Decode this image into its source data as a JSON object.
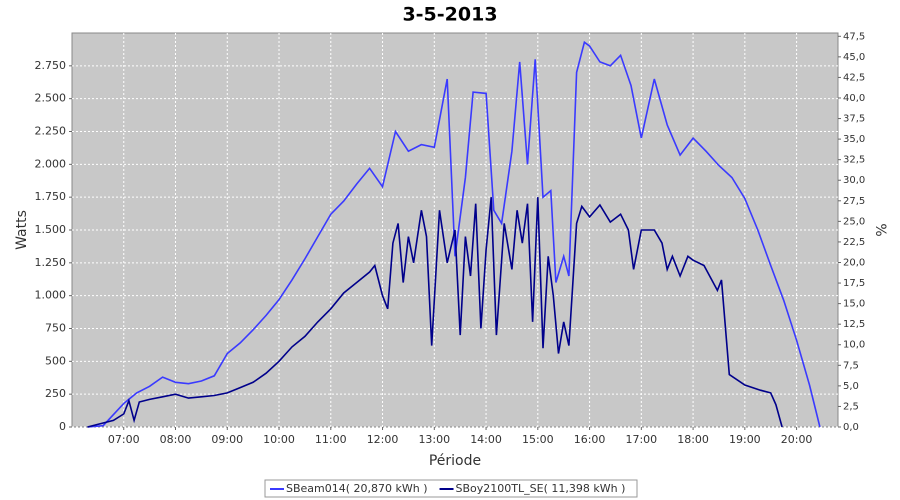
{
  "chart_data": {
    "type": "line",
    "title": "3-5-2013",
    "xlabel": "Période",
    "ylabel": "Watts",
    "y2label": "%",
    "xlim": [
      6.0,
      20.8
    ],
    "xticks": [
      {
        "value": 7,
        "label": "07:00"
      },
      {
        "value": 8,
        "label": "08:00"
      },
      {
        "value": 9,
        "label": "09:00"
      },
      {
        "value": 10,
        "label": "10:00"
      },
      {
        "value": 11,
        "label": "11:00"
      },
      {
        "value": 12,
        "label": "12:00"
      },
      {
        "value": 13,
        "label": "13:00"
      },
      {
        "value": 14,
        "label": "14:00"
      },
      {
        "value": 15,
        "label": "15:00"
      },
      {
        "value": 16,
        "label": "16:00"
      },
      {
        "value": 17,
        "label": "17:00"
      },
      {
        "value": 18,
        "label": "18:00"
      },
      {
        "value": 19,
        "label": "19:00"
      },
      {
        "value": 20,
        "label": "20:00"
      }
    ],
    "ylim": [
      0,
      3000
    ],
    "yticks": [
      0,
      250,
      500,
      750,
      {
        "value": 1000,
        "label": "1.000"
      },
      {
        "value": 1250,
        "label": "1.250"
      },
      {
        "value": 1500,
        "label": "1.500"
      },
      {
        "value": 1750,
        "label": "1.750"
      },
      {
        "value": 2000,
        "label": "2.000"
      },
      {
        "value": 2250,
        "label": "2.250"
      },
      {
        "value": 2500,
        "label": "2.500"
      },
      {
        "value": 2750,
        "label": "2.750"
      }
    ],
    "y2lim": [
      0,
      47.9
    ],
    "y2ticks": [
      {
        "value": 0,
        "label": "0,0"
      },
      {
        "value": 2.5,
        "label": "2,5"
      },
      {
        "value": 5,
        "label": "5,0"
      },
      {
        "value": 7.5,
        "label": "7,5"
      },
      {
        "value": 10,
        "label": "10,0"
      },
      {
        "value": 12.5,
        "label": "12,5"
      },
      {
        "value": 15,
        "label": "15,0"
      },
      {
        "value": 17.5,
        "label": "17,5"
      },
      {
        "value": 20,
        "label": "20,0"
      },
      {
        "value": 22.5,
        "label": "22,5"
      },
      {
        "value": 25,
        "label": "25,0"
      },
      {
        "value": 27.5,
        "label": "27,5"
      },
      {
        "value": 30,
        "label": "30,0"
      },
      {
        "value": 32.5,
        "label": "32,5"
      },
      {
        "value": 35,
        "label": "35,0"
      },
      {
        "value": 37.5,
        "label": "37,5"
      },
      {
        "value": 40,
        "label": "40,0"
      },
      {
        "value": 42.5,
        "label": "42,5"
      },
      {
        "value": 45,
        "label": "45,0"
      },
      {
        "value": 47.5,
        "label": "47,5"
      }
    ],
    "grid": true,
    "series": [
      {
        "name": "SBeam014( 20,870 kWh )",
        "color": "#3a3aff",
        "x": [
          6.3,
          6.6,
          7.0,
          7.25,
          7.5,
          7.75,
          8.0,
          8.25,
          8.5,
          8.75,
          9.0,
          9.25,
          9.5,
          9.75,
          10.0,
          10.25,
          10.5,
          10.75,
          11.0,
          11.25,
          11.5,
          11.75,
          12.0,
          12.25,
          12.5,
          12.75,
          13.0,
          13.25,
          13.4,
          13.6,
          13.75,
          14.0,
          14.15,
          14.3,
          14.5,
          14.65,
          14.8,
          14.95,
          15.1,
          15.25,
          15.35,
          15.5,
          15.6,
          15.75,
          15.9,
          16.0,
          16.2,
          16.4,
          16.6,
          16.8,
          17.0,
          17.25,
          17.5,
          17.75,
          18.0,
          18.25,
          18.5,
          18.75,
          19.0,
          19.25,
          19.5,
          19.75,
          20.0,
          20.25,
          20.45
        ],
        "values": [
          0,
          10,
          180,
          260,
          310,
          380,
          340,
          330,
          350,
          390,
          560,
          640,
          740,
          850,
          970,
          1120,
          1280,
          1450,
          1620,
          1720,
          1850,
          1970,
          1830,
          2250,
          2100,
          2150,
          2130,
          2650,
          1300,
          1900,
          2550,
          2540,
          1650,
          1550,
          2100,
          2780,
          2000,
          2800,
          1750,
          1800,
          1100,
          1300,
          1150,
          2700,
          2930,
          2900,
          2780,
          2750,
          2830,
          2600,
          2200,
          2650,
          2300,
          2070,
          2200,
          2100,
          1990,
          1900,
          1740,
          1500,
          1230,
          965,
          660,
          320,
          0
        ]
      },
      {
        "name": "SBoy2100TL_SE( 11,398 kWh )",
        "color": "#00008b",
        "x": [
          6.3,
          6.8,
          7.0,
          7.1,
          7.2,
          7.3,
          7.5,
          7.75,
          8.0,
          8.25,
          8.5,
          8.75,
          9.0,
          9.25,
          9.5,
          9.75,
          10.0,
          10.25,
          10.5,
          10.75,
          11.0,
          11.25,
          11.5,
          11.75,
          11.85,
          12.0,
          12.1,
          12.2,
          12.3,
          12.4,
          12.5,
          12.6,
          12.75,
          12.85,
          12.95,
          13.1,
          13.25,
          13.4,
          13.5,
          13.6,
          13.7,
          13.8,
          13.9,
          14.0,
          14.1,
          14.2,
          14.35,
          14.5,
          14.6,
          14.7,
          14.8,
          14.9,
          15.0,
          15.1,
          15.2,
          15.3,
          15.4,
          15.5,
          15.6,
          15.75,
          15.85,
          16.0,
          16.2,
          16.4,
          16.6,
          16.75,
          16.85,
          17.0,
          17.25,
          17.4,
          17.5,
          17.6,
          17.75,
          17.9,
          18.0,
          18.21,
          18.47,
          18.55,
          18.7,
          19.0,
          19.3,
          19.5,
          19.6,
          19.72
        ],
        "values": [
          0,
          50,
          100,
          200,
          50,
          190,
          210,
          230,
          250,
          220,
          230,
          240,
          260,
          300,
          340,
          410,
          500,
          610,
          690,
          800,
          900,
          1020,
          1100,
          1180,
          1230,
          1000,
          900,
          1400,
          1550,
          1100,
          1450,
          1250,
          1650,
          1450,
          620,
          1650,
          1250,
          1500,
          700,
          1450,
          1150,
          1700,
          750,
          1350,
          1750,
          700,
          1550,
          1200,
          1650,
          1400,
          1700,
          800,
          1750,
          600,
          1300,
          1000,
          560,
          800,
          620,
          1550,
          1680,
          1600,
          1690,
          1560,
          1620,
          1500,
          1200,
          1500,
          1500,
          1400,
          1200,
          1300,
          1150,
          1300,
          1270,
          1230,
          1040,
          1120,
          400,
          320,
          280,
          260,
          170,
          0
        ]
      }
    ]
  }
}
